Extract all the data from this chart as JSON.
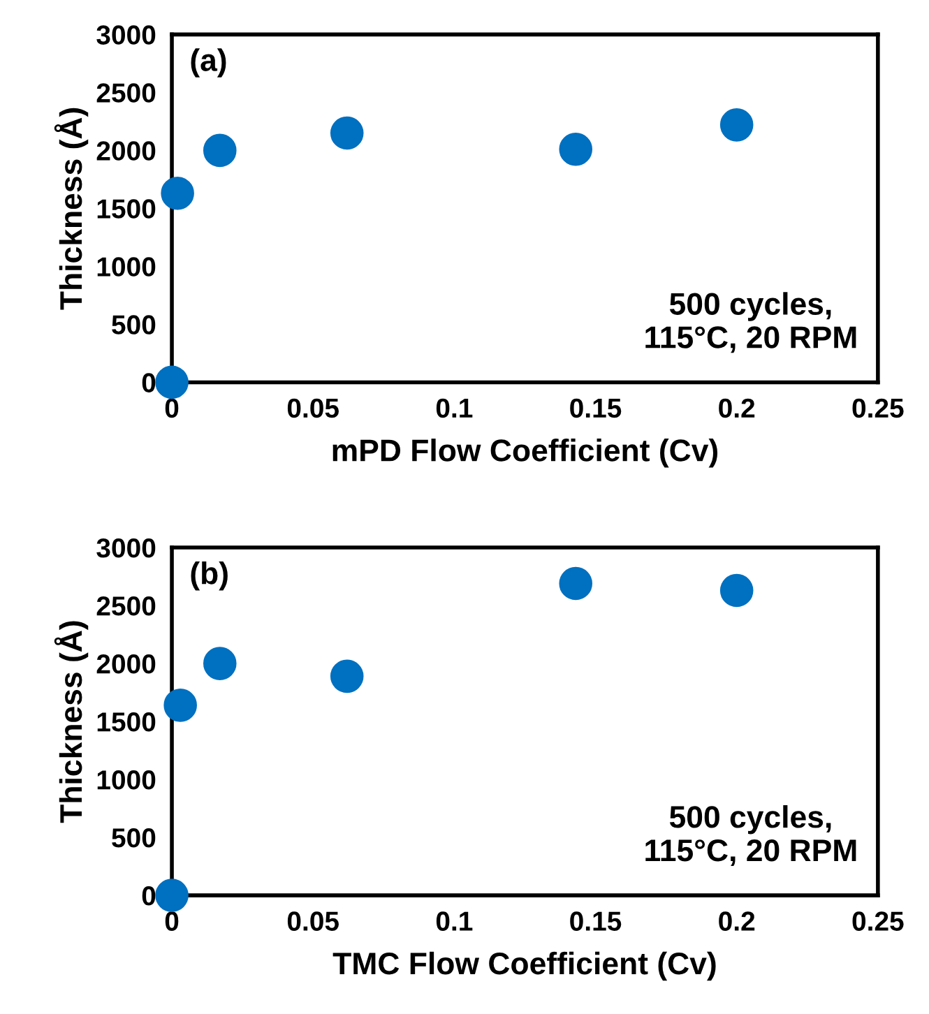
{
  "chart_data": [
    {
      "type": "scatter",
      "xlabel": "mPD Flow Coefficient (Cv)",
      "ylabel": "Thickness (Å)",
      "annotations": [
        "(a)",
        "500 cycles,\n115°C, 20 RPM"
      ],
      "x": [
        0,
        0.002,
        0.017,
        0.062,
        0.143,
        0.2
      ],
      "series": [
        {
          "color": "#0070c0",
          "values": [
            0,
            1630,
            2000,
            2150,
            2010,
            2220
          ]
        }
      ],
      "xlim": [
        0,
        0.25
      ],
      "xticks": [
        0,
        0.05,
        0.1,
        0.15,
        0.2,
        0.25
      ],
      "ylim": [
        0,
        3000
      ],
      "yticks": [
        0,
        500,
        1000,
        1500,
        2000,
        2500,
        3000
      ],
      "grid": false,
      "marker": "circle"
    },
    {
      "type": "scatter",
      "xlabel": "TMC Flow Coefficient (Cv)",
      "ylabel": "Thickness (Å)",
      "annotations": [
        "(b)",
        "500 cycles,\n115°C, 20 RPM"
      ],
      "x": [
        0,
        0.003,
        0.017,
        0.062,
        0.143,
        0.2
      ],
      "series": [
        {
          "color": "#0070c0",
          "values": [
            0,
            1640,
            2000,
            1890,
            2690,
            2630
          ]
        }
      ],
      "xlim": [
        0,
        0.25
      ],
      "xticks": [
        0,
        0.05,
        0.1,
        0.15,
        0.2,
        0.25
      ],
      "ylim": [
        0,
        3000
      ],
      "yticks": [
        0,
        500,
        1000,
        1500,
        2000,
        2500,
        3000
      ],
      "grid": false,
      "marker": "circle"
    }
  ]
}
